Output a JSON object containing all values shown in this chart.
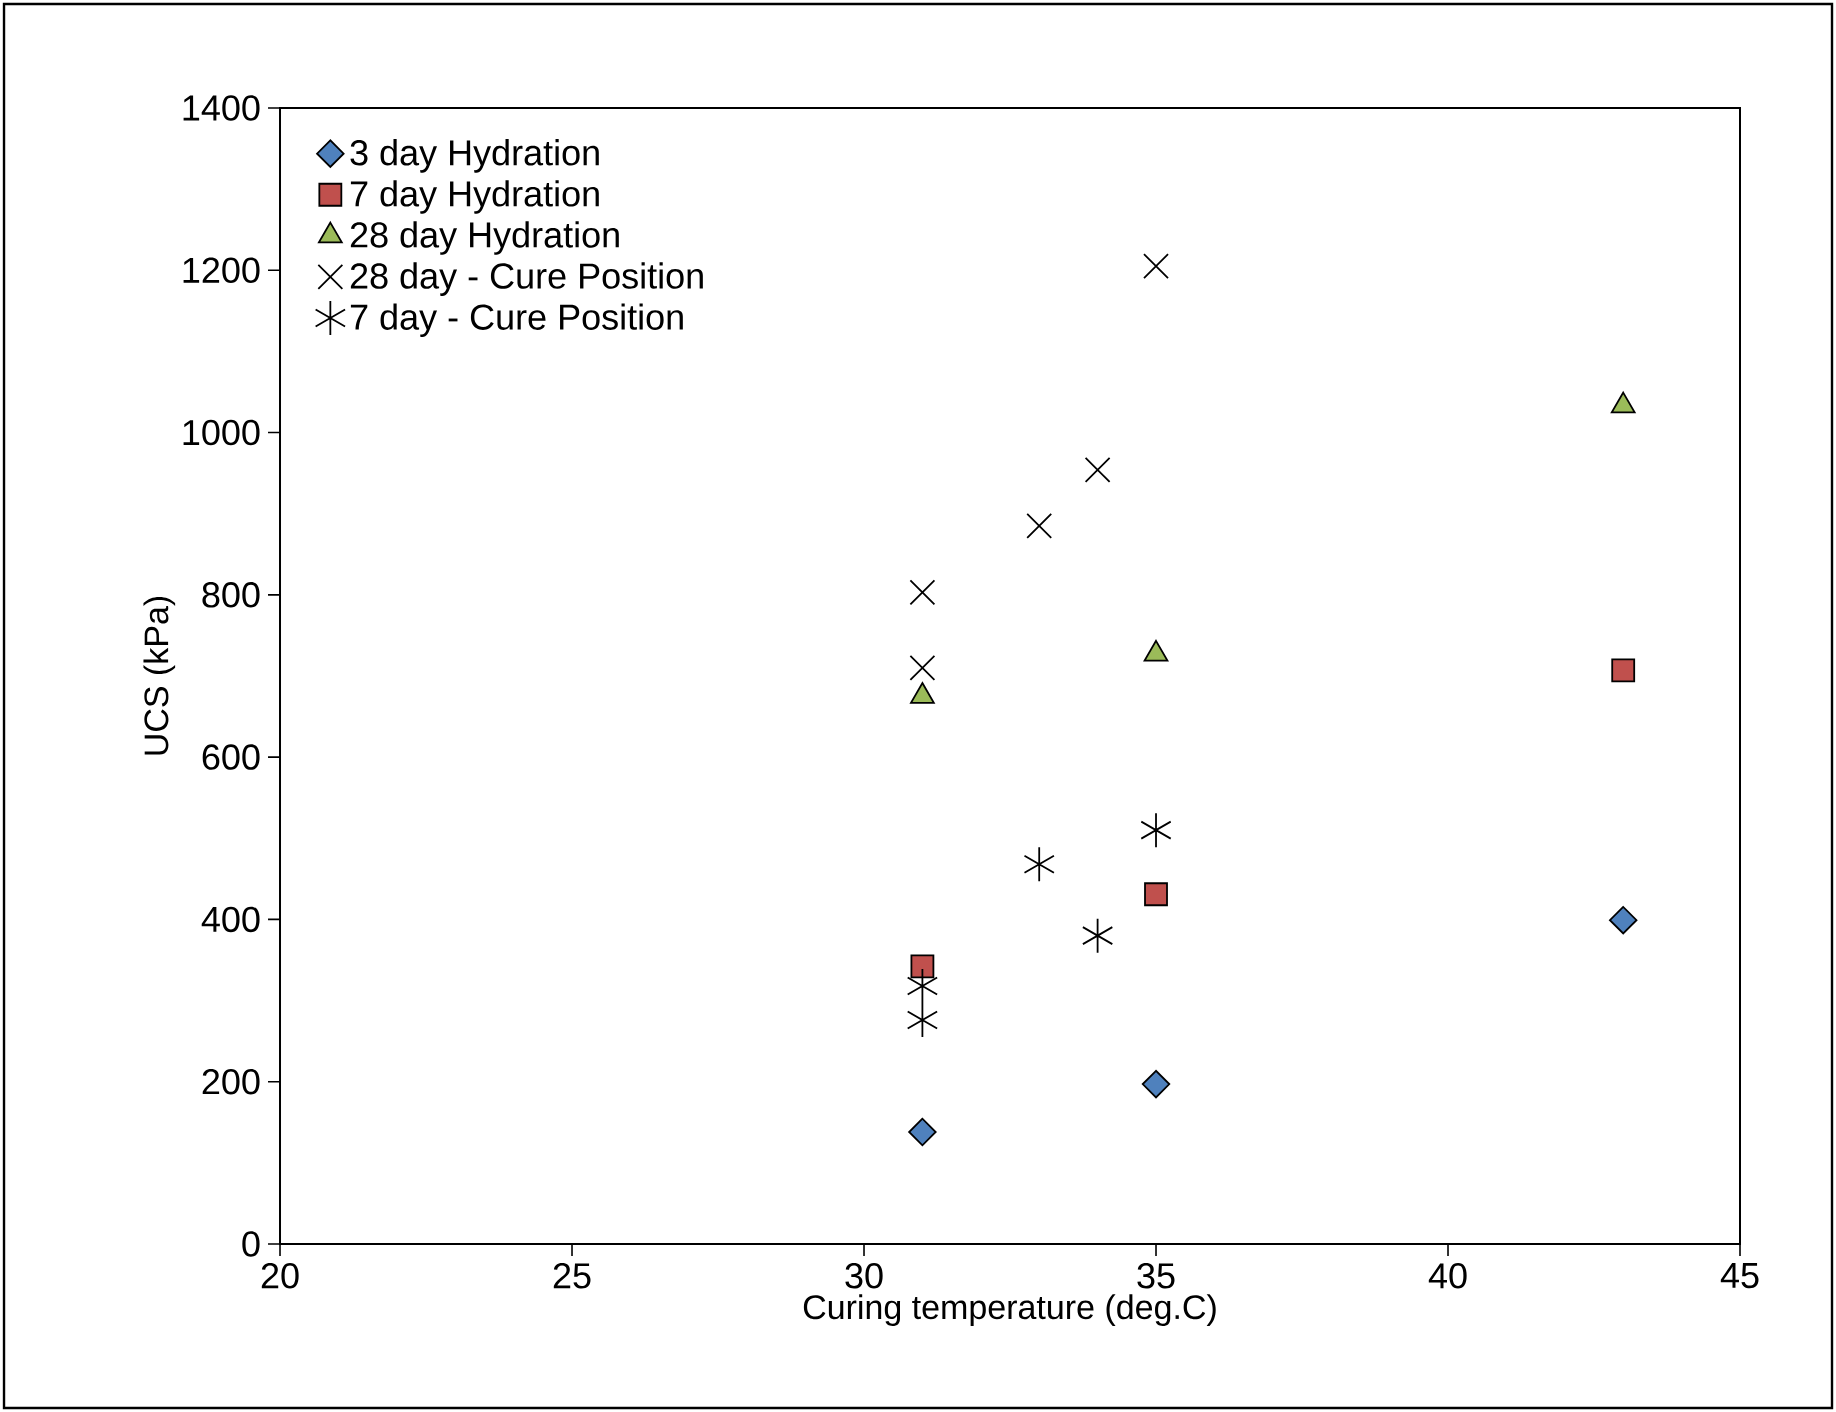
{
  "chart_data": {
    "type": "scatter",
    "xlabel": "Curing temperature (deg.C)",
    "ylabel": "UCS (kPa)",
    "xlim": [
      20,
      45
    ],
    "xticks": [
      20,
      25,
      30,
      35,
      40,
      45
    ],
    "ylim": [
      0,
      1400
    ],
    "yticks": [
      0,
      200,
      400,
      600,
      800,
      1000,
      1200,
      1400
    ],
    "grid": false,
    "legend": "top left",
    "series": [
      {
        "name": "3 day Hydration",
        "color": "#4f81bd",
        "marker": "diamond",
        "x": [
          31,
          35,
          43
        ],
        "values": [
          138,
          197,
          399
        ]
      },
      {
        "name": "7 day Hydration",
        "color": "#c0504d",
        "marker": "square",
        "x": [
          31,
          35,
          43
        ],
        "values": [
          342,
          431,
          707
        ]
      },
      {
        "name": "28 day Hydration",
        "color": "#9bbb59",
        "marker": "triangle",
        "x": [
          31,
          35,
          43
        ],
        "values": [
          675,
          727,
          1033
        ]
      },
      {
        "name": "28 day - Cure Position",
        "color": "#000000",
        "marker": "cross",
        "x": [
          31,
          31,
          33,
          34,
          35
        ],
        "values": [
          803,
          710,
          885,
          954,
          1205
        ]
      },
      {
        "name": "7 day - Cure Position",
        "color": "#000000",
        "x": [
          31,
          31,
          33,
          34,
          35
        ],
        "values": [
          318,
          276,
          468,
          380,
          510
        ]
      }
    ]
  }
}
